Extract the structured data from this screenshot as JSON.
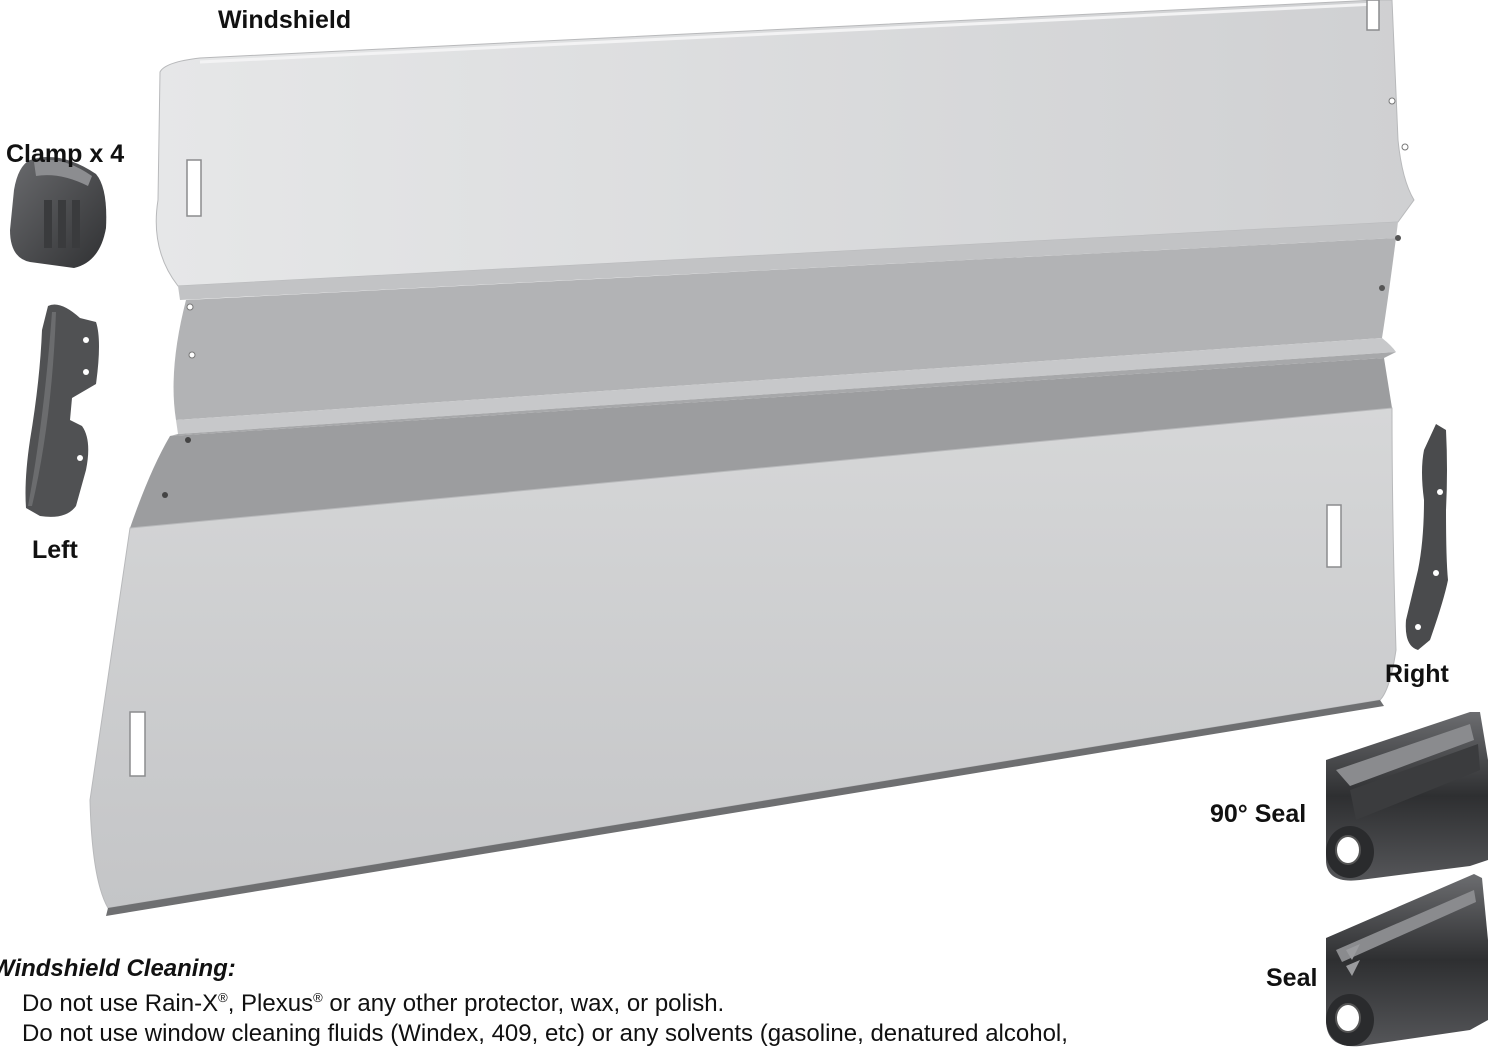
{
  "labels": {
    "windshield": "Windshield",
    "clamp": "Clamp x 4",
    "left": "Left",
    "right": "Right",
    "seal_90": "90° Seal",
    "seal": "Seal"
  },
  "cleaning": {
    "title": "Windshield Cleaning:",
    "line1_a": "Do not use Rain-X",
    "reg": "®",
    "line1_b": ", Plexus",
    "line1_c": " or any other protector, wax, or polish.",
    "line2": "Do not use window cleaning fluids (Windex, 409, etc) or any solvents (gasoline, denatured alcohol,"
  },
  "colors": {
    "panel_light": "#dadbdc",
    "panel_mid": "#c9cacc",
    "band_dark": "#9c9d9f",
    "panel_lower": "#cfd0d1",
    "bracket": "#4a4b4d",
    "seal": "#3a3b3d"
  }
}
